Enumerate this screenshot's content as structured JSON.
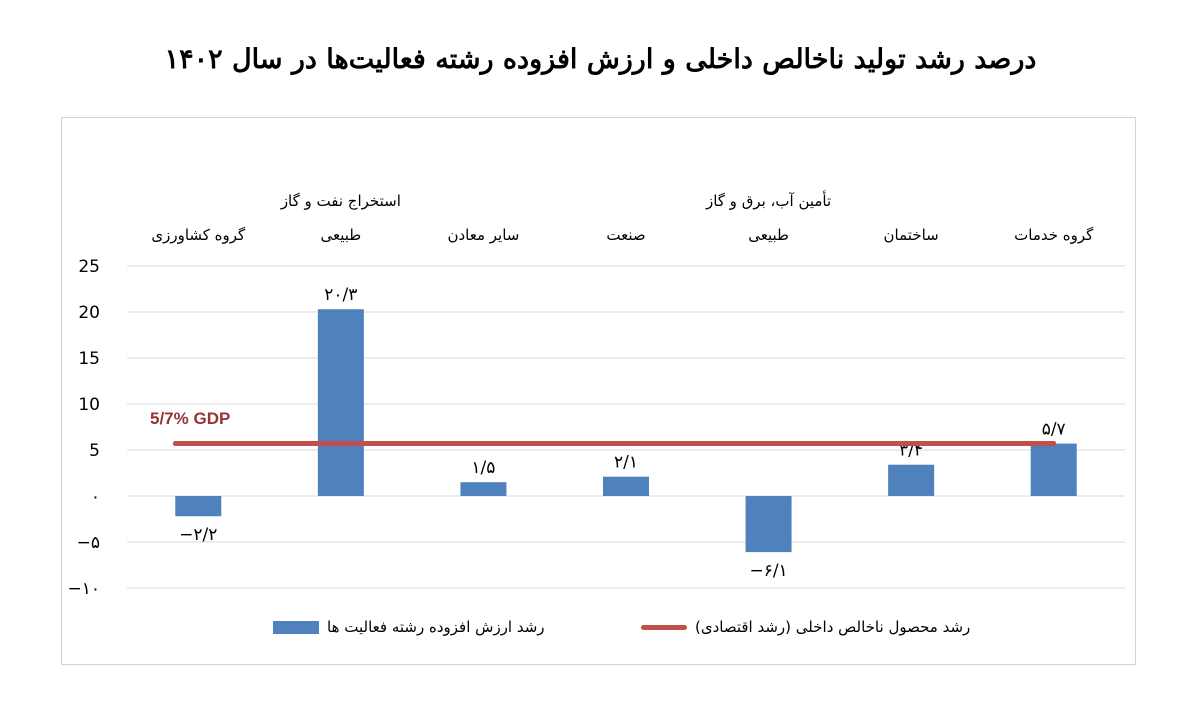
{
  "chart_data": {
    "type": "bar",
    "title": "درصد رشد تولید ناخالص داخلی و ارزش افزوده رشته فعالیت‌ها در سال ۱۴۰۲",
    "categories": [
      [
        "گروه کشاورزی"
      ],
      [
        "استخراج نفت و گاز",
        "طبیعی"
      ],
      [
        "سایر معادن"
      ],
      [
        "صنعت"
      ],
      [
        "تأمین آب، برق و گاز",
        "طبیعی"
      ],
      [
        "ساختمان"
      ],
      [
        "گروه خدمات"
      ]
    ],
    "series": [
      {
        "name": "رشد ارزش افزوده رشته فعالیت ها",
        "values": [
          -2.2,
          20.3,
          1.5,
          2.1,
          -6.1,
          3.4,
          5.7
        ],
        "labels": [
          "−۲/۲",
          "۲۰/۳",
          "۱/۵",
          "۲/۱",
          "−۶/۱",
          "۳/۴",
          "۵/۷"
        ],
        "color": "#4f81bd"
      },
      {
        "name": "رشد محصول ناخالص داخلی (رشد اقتصادی)",
        "type": "line",
        "value": 5.7,
        "annotation": "5/7%  GDP",
        "color": "#c0504d"
      }
    ],
    "y_ticks": [
      25,
      20,
      15,
      10,
      5,
      0,
      -5,
      -10
    ],
    "y_tick_labels": [
      "25",
      "20",
      "15",
      "10",
      "5",
      "۰",
      "−۵",
      "−۱۰"
    ],
    "ylim": [
      -10,
      25
    ],
    "grid": true,
    "legend_position": "bottom"
  }
}
